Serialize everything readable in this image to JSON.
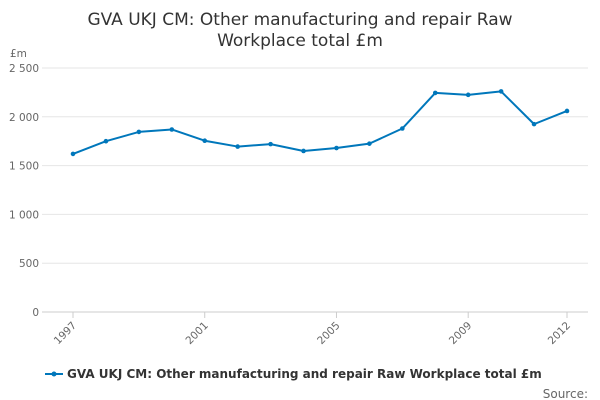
{
  "chart_data": {
    "type": "line",
    "title_lines": [
      "GVA UKJ CM: Other manufacturing and repair Raw",
      "Workplace total £m"
    ],
    "ylabel": "£m",
    "xlabel": "",
    "ylim": [
      0,
      2500
    ],
    "yticks": [
      0,
      500,
      1000,
      1500,
      2000,
      2500
    ],
    "ytick_labels": [
      "0",
      "500",
      "1 000",
      "1 500",
      "2 000",
      "2 500"
    ],
    "x": [
      1997,
      1998,
      1999,
      2000,
      2001,
      2002,
      2003,
      2004,
      2005,
      2006,
      2007,
      2008,
      2009,
      2010,
      2011,
      2012
    ],
    "xtick_labels": [
      "1997",
      "2001",
      "2005",
      "2009",
      "2012"
    ],
    "series": [
      {
        "name": "GVA UKJ CM: Other manufacturing and repair Raw Workplace total £m",
        "color": "#0077bb",
        "values": [
          1620,
          1750,
          1845,
          1870,
          1755,
          1695,
          1720,
          1650,
          1680,
          1725,
          1880,
          2245,
          2225,
          2260,
          1925,
          2060
        ]
      }
    ],
    "grid": "horizontal",
    "legend_position": "bottom"
  },
  "footer": {
    "source_label": "Source:"
  },
  "colors": {
    "series": "#0077bb",
    "grid": "#e6e6e6",
    "axis": "#cccccc",
    "text": "#333333"
  }
}
